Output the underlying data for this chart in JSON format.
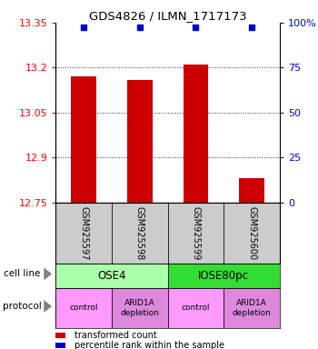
{
  "title": "GDS4826 / ILMN_1717173",
  "samples": [
    "GSM925597",
    "GSM925598",
    "GSM925599",
    "GSM925600"
  ],
  "bar_values": [
    13.17,
    13.16,
    13.21,
    12.83
  ],
  "percentile_values": [
    99,
    99,
    99,
    99
  ],
  "ylim": [
    12.75,
    13.35
  ],
  "yticks_left": [
    12.75,
    12.9,
    13.05,
    13.2,
    13.35
  ],
  "yticks_right": [
    0,
    25,
    50,
    75,
    100
  ],
  "ytick_labels_left": [
    "12.75",
    "12.9",
    "13.05",
    "13.2",
    "13.35"
  ],
  "ytick_labels_right": [
    "0",
    "25",
    "50",
    "75",
    "100%"
  ],
  "bar_color": "#cc0000",
  "dot_color": "#0000cc",
  "cell_line_data": [
    {
      "label": "OSE4",
      "span": [
        0,
        2
      ],
      "color": "#aaffaa"
    },
    {
      "label": "IOSE80pc",
      "span": [
        2,
        4
      ],
      "color": "#33dd33"
    }
  ],
  "protocol_data": [
    {
      "label": "control",
      "span": [
        0,
        1
      ],
      "color": "#ff99ff"
    },
    {
      "label": "ARID1A\ndepletion",
      "span": [
        1,
        2
      ],
      "color": "#dd88dd"
    },
    {
      "label": "control",
      "span": [
        2,
        3
      ],
      "color": "#ff99ff"
    },
    {
      "label": "ARID1A\ndepletion",
      "span": [
        3,
        4
      ],
      "color": "#dd88dd"
    }
  ],
  "legend_items": [
    {
      "color": "#cc0000",
      "label": "transformed count"
    },
    {
      "color": "#0000cc",
      "label": "percentile rank within the sample"
    }
  ],
  "cell_line_label": "cell line",
  "protocol_label": "protocol",
  "gsm_bg_color": "#cccccc"
}
